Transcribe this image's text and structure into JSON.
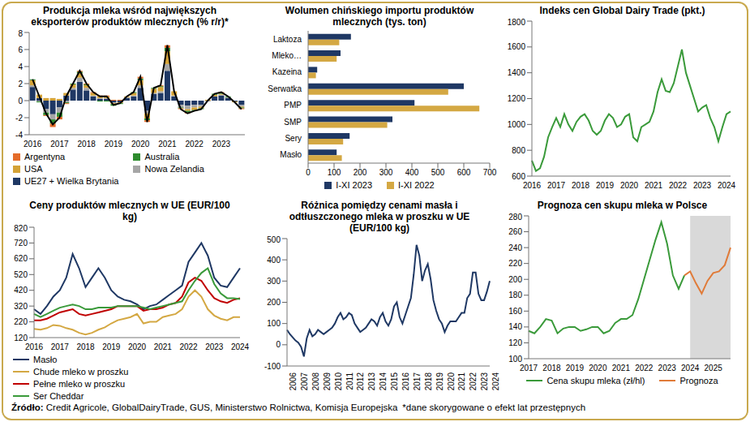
{
  "chart_data": [
    {
      "type": "bar",
      "stacked": true,
      "grid": false,
      "legend": "bottom",
      "title": "Produkcja mleka wśród największych eksporterów produktów mlecznych (% r/r)*",
      "categories": [
        "2016",
        null,
        null,
        null,
        "2017",
        null,
        null,
        null,
        "2018",
        null,
        null,
        null,
        "2019",
        null,
        null,
        null,
        "2020",
        null,
        null,
        null,
        "2021",
        null,
        null,
        null,
        "2022",
        null,
        null,
        null,
        "2023",
        null,
        null,
        null
      ],
      "ylim": [
        -4,
        8
      ],
      "yticks": [
        -4,
        -2,
        0,
        2,
        4,
        6,
        8
      ],
      "series": [
        {
          "name": "Argentyna",
          "color": "#e46c2a",
          "values": [
            0.0,
            0.0,
            -0.1,
            -0.4,
            -0.3,
            -0.1,
            0.0,
            0.1,
            0.1,
            0.1,
            0.1,
            0.1,
            0.1,
            0.1,
            0.0,
            0.0,
            0.2,
            -0.2,
            0.0,
            0.1,
            0.3,
            0.0,
            -0.1,
            -0.1,
            0.0,
            0.0,
            0.0,
            0.0,
            0.1,
            0.0,
            0.0,
            -0.1
          ]
        },
        {
          "name": "Australia",
          "color": "#2e8b2e",
          "values": [
            0.1,
            -0.1,
            -0.3,
            -0.5,
            -0.5,
            -0.1,
            0.1,
            0.2,
            0.1,
            0.0,
            -0.1,
            -0.1,
            -0.2,
            -0.1,
            0.0,
            0.1,
            0.2,
            -0.2,
            0.1,
            0.1,
            0.4,
            0.0,
            -0.1,
            -0.2,
            -0.1,
            -0.1,
            0.0,
            0.1,
            0.1,
            0.1,
            0.0,
            -0.1
          ]
        },
        {
          "name": "USA",
          "color": "#d4a236",
          "values": [
            0.6,
            0.4,
            0.3,
            0.3,
            0.2,
            0.3,
            0.4,
            0.5,
            0.3,
            0.3,
            0.2,
            0.2,
            -0.1,
            -0.1,
            0.1,
            0.3,
            0.6,
            -0.6,
            0.5,
            0.5,
            1.5,
            0.5,
            0.0,
            -0.2,
            -0.3,
            -0.2,
            0.1,
            0.2,
            0.1,
            0.0,
            -0.1,
            -0.1
          ]
        },
        {
          "name": "Nowa Zelandia",
          "color": "#a6a6a6",
          "values": [
            0.2,
            -0.1,
            -0.4,
            -0.6,
            -0.6,
            -0.2,
            0.2,
            0.5,
            0.3,
            0.1,
            0.1,
            0.1,
            -0.1,
            0.0,
            0.1,
            0.1,
            0.3,
            -0.3,
            0.1,
            0.2,
            0.8,
            0.1,
            -0.3,
            -0.4,
            -0.3,
            -0.2,
            -0.1,
            0.0,
            0.1,
            0.1,
            0.0,
            -0.2
          ]
        },
        {
          "name": "UE27 + Wielka Brytania",
          "color": "#1f3864",
          "values": [
            1.6,
            0.3,
            -1.0,
            -1.6,
            -0.8,
            0.6,
            1.3,
            2.2,
            1.2,
            0.5,
            0.2,
            0.2,
            -0.2,
            -0.2,
            0.3,
            0.5,
            1.5,
            -1.2,
            0.8,
            0.9,
            3.5,
            0.5,
            -0.5,
            -0.6,
            -0.5,
            -0.5,
            0.0,
            0.5,
            0.6,
            0.3,
            -0.1,
            -0.5
          ]
        },
        {
          "type": "line",
          "color": "#000000",
          "values": [
            2.5,
            0.5,
            -1.5,
            -2.8,
            -2.0,
            0.5,
            2.0,
            3.5,
            2.0,
            1.0,
            0.5,
            0.5,
            -0.5,
            -0.3,
            0.5,
            1.0,
            2.8,
            -2.5,
            1.5,
            1.8,
            6.5,
            1.1,
            -1.0,
            -1.5,
            -1.2,
            -1.0,
            0.0,
            0.8,
            1.0,
            0.5,
            -0.2,
            -1.0
          ]
        }
      ]
    },
    {
      "type": "bar",
      "orientation": "horizontal",
      "grid": false,
      "legend": "bottom",
      "title": "Wolumen chińskiego importu produktów mlecznych (tys. ton)",
      "categories": [
        "Laktoza",
        "Mleko…",
        "Kazeina",
        "Serwatka",
        "PMP",
        "SMP",
        "Sery",
        "Masło"
      ],
      "xlim": [
        0,
        700
      ],
      "xticks": [
        0,
        100,
        200,
        300,
        400,
        500,
        600,
        700
      ],
      "series": [
        {
          "name": "I-XI 2023",
          "color": "#1f3864",
          "values": [
            165,
            125,
            35,
            600,
            410,
            325,
            160,
            110
          ]
        },
        {
          "name": "I-XI 2022",
          "color": "#d4a843",
          "values": [
            120,
            110,
            30,
            540,
            660,
            305,
            135,
            130
          ]
        }
      ]
    },
    {
      "type": "line",
      "grid": false,
      "title": "Indeks cen Global Dairy Trade (pkt.)",
      "categories": [
        "2016",
        null,
        null,
        null,
        null,
        null,
        "2017",
        null,
        null,
        null,
        null,
        null,
        "2018",
        null,
        null,
        null,
        null,
        null,
        "2019",
        null,
        null,
        null,
        null,
        null,
        "2020",
        null,
        null,
        null,
        null,
        null,
        "2021",
        null,
        null,
        null,
        null,
        null,
        "2022",
        null,
        null,
        null,
        null,
        null,
        "2023",
        null,
        null,
        null,
        null,
        null,
        "2024",
        null
      ],
      "ylim": [
        600,
        1800
      ],
      "yticks": [
        600,
        800,
        1000,
        1200,
        1400,
        1600,
        1800
      ],
      "series": [
        {
          "color": "#3a9a3a",
          "values": [
            720,
            640,
            660,
            750,
            900,
            980,
            1050,
            980,
            1080,
            1000,
            950,
            1020,
            1060,
            1080,
            1030,
            950,
            920,
            950,
            1030,
            1080,
            1050,
            980,
            1000,
            1060,
            1080,
            900,
            870,
            980,
            1000,
            1020,
            1100,
            1250,
            1350,
            1260,
            1250,
            1320,
            1450,
            1580,
            1400,
            1300,
            1200,
            1100,
            1130,
            1150,
            1050,
            980,
            870,
            980,
            1080,
            1100
          ]
        }
      ]
    },
    {
      "type": "line",
      "grid": false,
      "legend": "bottom",
      "title": "Ceny produktów mlecznych w UE (EUR/100 kg)",
      "categories": [
        "2016",
        null,
        null,
        null,
        "2017",
        null,
        null,
        null,
        "2018",
        null,
        null,
        null,
        "2019",
        null,
        null,
        null,
        "2020",
        null,
        null,
        null,
        "2021",
        null,
        null,
        null,
        "2022",
        null,
        null,
        null,
        "2023",
        null,
        null,
        null,
        "2024"
      ],
      "ylim": [
        120,
        820
      ],
      "yticks": [
        120,
        220,
        320,
        420,
        520,
        620,
        720,
        820
      ],
      "series": [
        {
          "name": "Masło",
          "color": "#1f3864",
          "values": [
            300,
            270,
            320,
            380,
            420,
            500,
            650,
            560,
            440,
            500,
            560,
            500,
            420,
            380,
            360,
            350,
            330,
            300,
            320,
            330,
            360,
            390,
            420,
            450,
            600,
            660,
            720,
            640,
            500,
            450,
            440,
            500,
            560
          ]
        },
        {
          "name": "Chude mleko w proszku",
          "color": "#d4a843",
          "values": [
            175,
            170,
            180,
            200,
            195,
            180,
            170,
            150,
            140,
            150,
            170,
            185,
            210,
            230,
            240,
            250,
            270,
            210,
            220,
            220,
            250,
            260,
            270,
            300,
            380,
            420,
            380,
            300,
            260,
            240,
            230,
            250,
            250
          ]
        },
        {
          "name": "Pełne mleko w proszku",
          "color": "#c00000",
          "values": [
            230,
            230,
            240,
            260,
            280,
            290,
            300,
            270,
            260,
            270,
            280,
            290,
            300,
            320,
            320,
            320,
            320,
            290,
            300,
            300,
            310,
            330,
            340,
            380,
            470,
            500,
            480,
            420,
            370,
            350,
            340,
            360,
            370
          ]
        },
        {
          "name": "Ser Cheddar",
          "color": "#3a9a3a",
          "values": [
            270,
            250,
            270,
            290,
            310,
            320,
            330,
            320,
            300,
            300,
            310,
            310,
            310,
            320,
            320,
            320,
            320,
            310,
            300,
            310,
            320,
            330,
            340,
            350,
            420,
            480,
            530,
            560,
            460,
            400,
            370,
            370,
            365
          ]
        }
      ]
    },
    {
      "type": "line",
      "grid": false,
      "title": "Różnica pomiędzy cenami masła i odtłuszczonego mleka w proszku w UE (EUR/100 kg)",
      "categories": [
        "2006",
        null,
        null,
        null,
        "2007",
        null,
        null,
        null,
        "2008",
        null,
        null,
        null,
        "2009",
        null,
        null,
        null,
        "2010",
        null,
        null,
        null,
        "2011",
        null,
        null,
        null,
        "2012",
        null,
        null,
        null,
        "2013",
        null,
        null,
        null,
        "2014",
        null,
        null,
        null,
        "2015",
        null,
        null,
        null,
        "2016",
        null,
        null,
        null,
        "2017",
        null,
        null,
        null,
        "2018",
        null,
        null,
        null,
        "2019",
        null,
        null,
        null,
        "2020",
        null,
        null,
        null,
        "2021",
        null,
        null,
        null,
        "2022",
        null,
        null,
        null,
        "2023",
        null,
        null,
        null,
        "2024"
      ],
      "ylim": [
        -100,
        500
      ],
      "yticks": [
        -100,
        0,
        100,
        200,
        300,
        400,
        500
      ],
      "series": [
        {
          "color": "#1f3864",
          "values": [
            70,
            50,
            35,
            20,
            10,
            -10,
            -55,
            30,
            70,
            40,
            50,
            70,
            60,
            50,
            60,
            70,
            80,
            100,
            130,
            150,
            120,
            130,
            150,
            140,
            100,
            80,
            60,
            70,
            80,
            100,
            120,
            110,
            90,
            130,
            150,
            110,
            90,
            120,
            180,
            200,
            130,
            100,
            140,
            180,
            220,
            330,
            470,
            420,
            300,
            350,
            380,
            310,
            210,
            160,
            120,
            100,
            60,
            90,
            110,
            110,
            110,
            130,
            150,
            150,
            220,
            240,
            340,
            340,
            240,
            210,
            210,
            250,
            300
          ]
        }
      ]
    },
    {
      "type": "line",
      "grid": false,
      "legend": "bottom",
      "title": "Prognoza cen skupu mleka w Polsce",
      "shaded_from": "2024",
      "categories": [
        "2017",
        null,
        null,
        null,
        "2018",
        null,
        null,
        null,
        "2019",
        null,
        null,
        null,
        "2020",
        null,
        null,
        null,
        "2021",
        null,
        null,
        null,
        "2022",
        null,
        null,
        null,
        "2023",
        null,
        null,
        null,
        "2024",
        null,
        null,
        null,
        "2025",
        null,
        null,
        null
      ],
      "ylim": [
        100,
        280
      ],
      "yticks": [
        100,
        120,
        140,
        160,
        180,
        200,
        220,
        240,
        260,
        280
      ],
      "series": [
        {
          "name": "Cena skupu mleka (zł/hl)",
          "color": "#3a9a3a",
          "values": [
            135,
            132,
            140,
            150,
            148,
            132,
            138,
            140,
            140,
            135,
            137,
            140,
            140,
            132,
            135,
            145,
            150,
            150,
            155,
            175,
            200,
            225,
            250,
            272,
            245,
            205,
            188,
            205,
            null,
            null,
            null,
            null,
            null,
            null,
            null,
            null
          ]
        },
        {
          "name": "Prognoza",
          "color": "#e07b39",
          "values": [
            null,
            null,
            null,
            null,
            null,
            null,
            null,
            null,
            null,
            null,
            null,
            null,
            null,
            null,
            null,
            null,
            null,
            null,
            null,
            null,
            null,
            null,
            null,
            null,
            null,
            null,
            null,
            205,
            210,
            195,
            182,
            198,
            208,
            210,
            218,
            240
          ]
        }
      ]
    }
  ],
  "source_label": "Źródło:",
  "source": "Credit Agricole, GlobalDairyTrade, GUS, Ministerstwo Rolnictwa, Komisja Europejska",
  "footnote": "*dane skorygowane o efekt lat przestępnych"
}
